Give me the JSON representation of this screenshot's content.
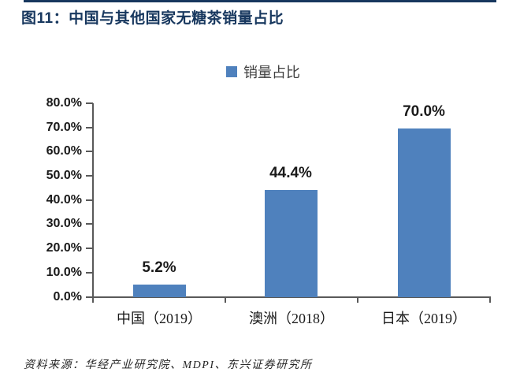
{
  "header": {
    "title": "图11：中国与其他国家无糖茶销量占比"
  },
  "legend": {
    "label": "销量占比",
    "swatch_color": "#4F81BD"
  },
  "chart_data": {
    "type": "bar",
    "title": "图11：中国与其他国家无糖茶销量占比",
    "legend_entries": [
      "销量占比"
    ],
    "legend_position": "top",
    "categories": [
      "中国（2019）",
      "澳洲（2018）",
      "日本（2019）"
    ],
    "values": [
      5.2,
      44.4,
      70.0
    ],
    "data_labels": [
      "5.2%",
      "44.4%",
      "70.0%"
    ],
    "xlabel": "",
    "ylabel": "",
    "ylim": [
      0,
      80
    ],
    "y_tick_step": 10,
    "y_tick_labels_top_to_bottom": [
      "80.0%",
      "70.0%",
      "60.0%",
      "50.0%",
      "40.0%",
      "30.0%",
      "20.0%",
      "10.0%",
      "0.0%"
    ],
    "grid": false,
    "bar_color": "#4F81BD",
    "axis_color": "#595959"
  },
  "footer": {
    "source": "资料来源：华经产业研究院、MDPI、东兴证券研究所"
  },
  "colors": {
    "title": "#17375E",
    "top_rule": "#17375E",
    "bar": "#4F81BD",
    "axis": "#595959",
    "text": "#1a1a1a"
  }
}
